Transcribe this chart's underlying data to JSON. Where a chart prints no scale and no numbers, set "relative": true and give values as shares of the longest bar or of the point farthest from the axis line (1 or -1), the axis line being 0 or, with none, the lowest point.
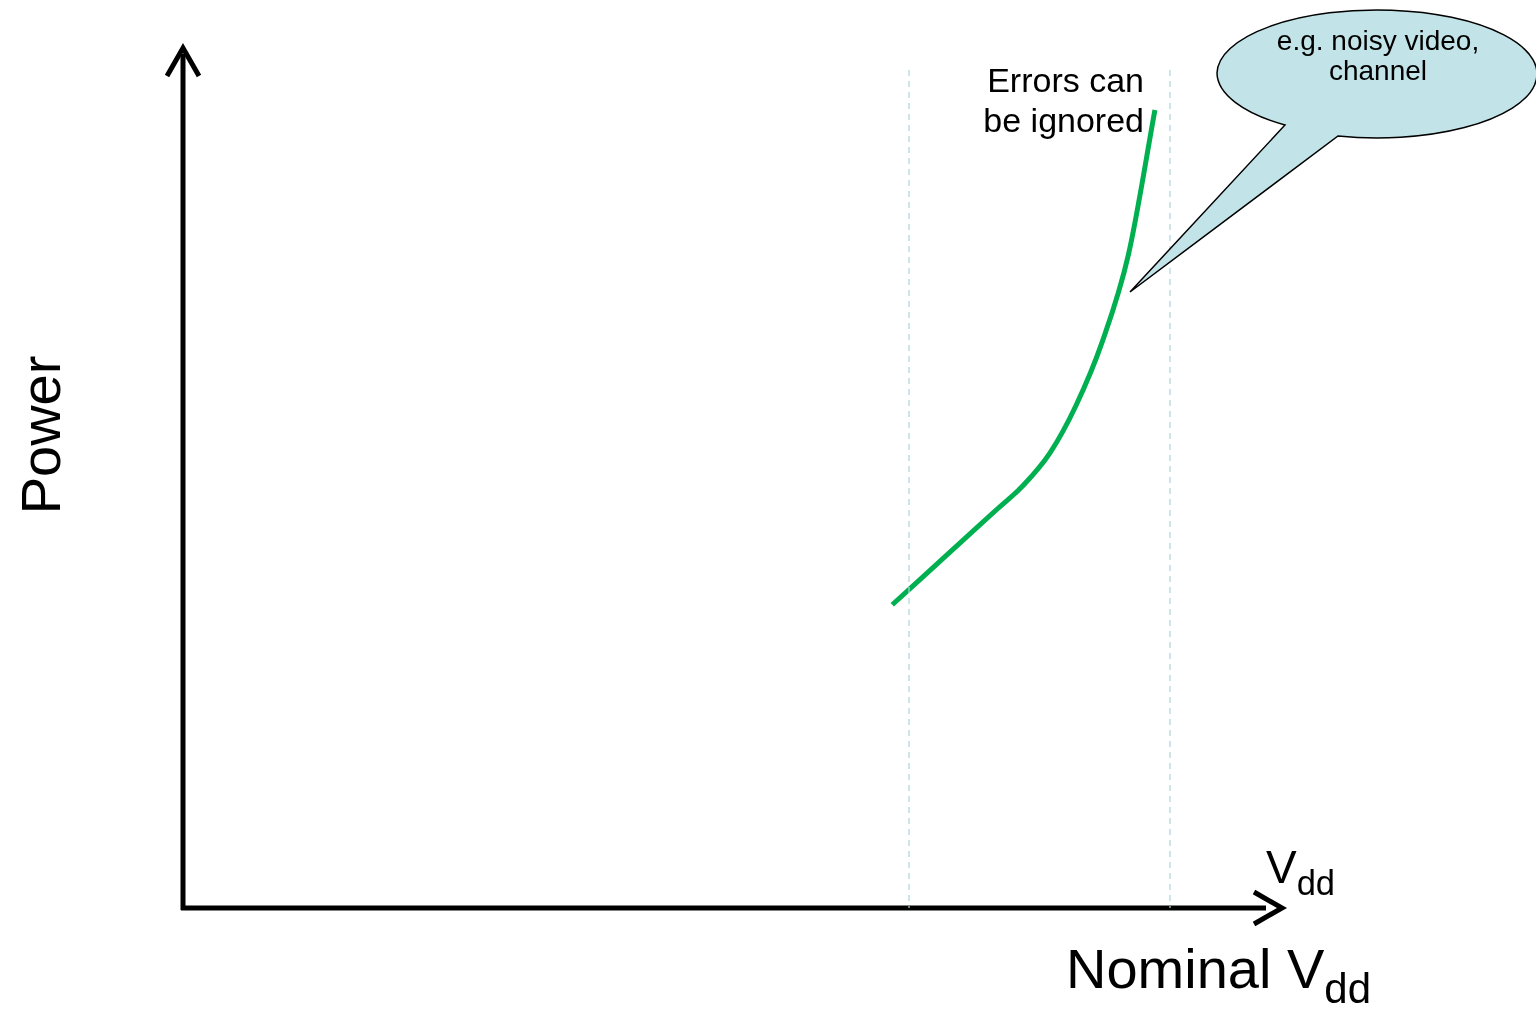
{
  "chart_data": {
    "type": "line",
    "relative": true,
    "ylabel": "Power",
    "xlabel": "V$_{dd}$",
    "categories": [
      null,
      null,
      null,
      null,
      null,
      null,
      null,
      null,
      null,
      null,
      null,
      null,
      null,
      null,
      null,
      null,
      null,
      null,
      null,
      null,
      null,
      null,
      null,
      null,
      null,
      null,
      null,
      null,
      null,
      null,
      null,
      null,
      null,
      null,
      null,
      null,
      null,
      null,
      null,
      null,
      null,
      null
    ],
    "series": [
      {
        "color": "#00b050",
        "values": [
          null,
          null,
          null,
          null,
          null,
          null,
          null,
          null,
          null,
          null,
          null,
          null,
          null,
          null,
          null,
          null,
          null,
          null,
          null,
          null,
          null,
          null,
          null,
          null,
          null,
          null,
          null,
          0.38,
          0.41,
          0.44,
          0.47,
          0.5,
          0.53,
          0.57,
          0.63,
          0.71,
          0.82,
          1,
          null,
          null,
          null,
          null
        ]
      }
    ],
    "annotations": [
      "Errors  can be ignored",
      "e.g. noisy video, channel",
      "Nominal V$_{dd}$"
    ],
    "legend": false
  }
}
